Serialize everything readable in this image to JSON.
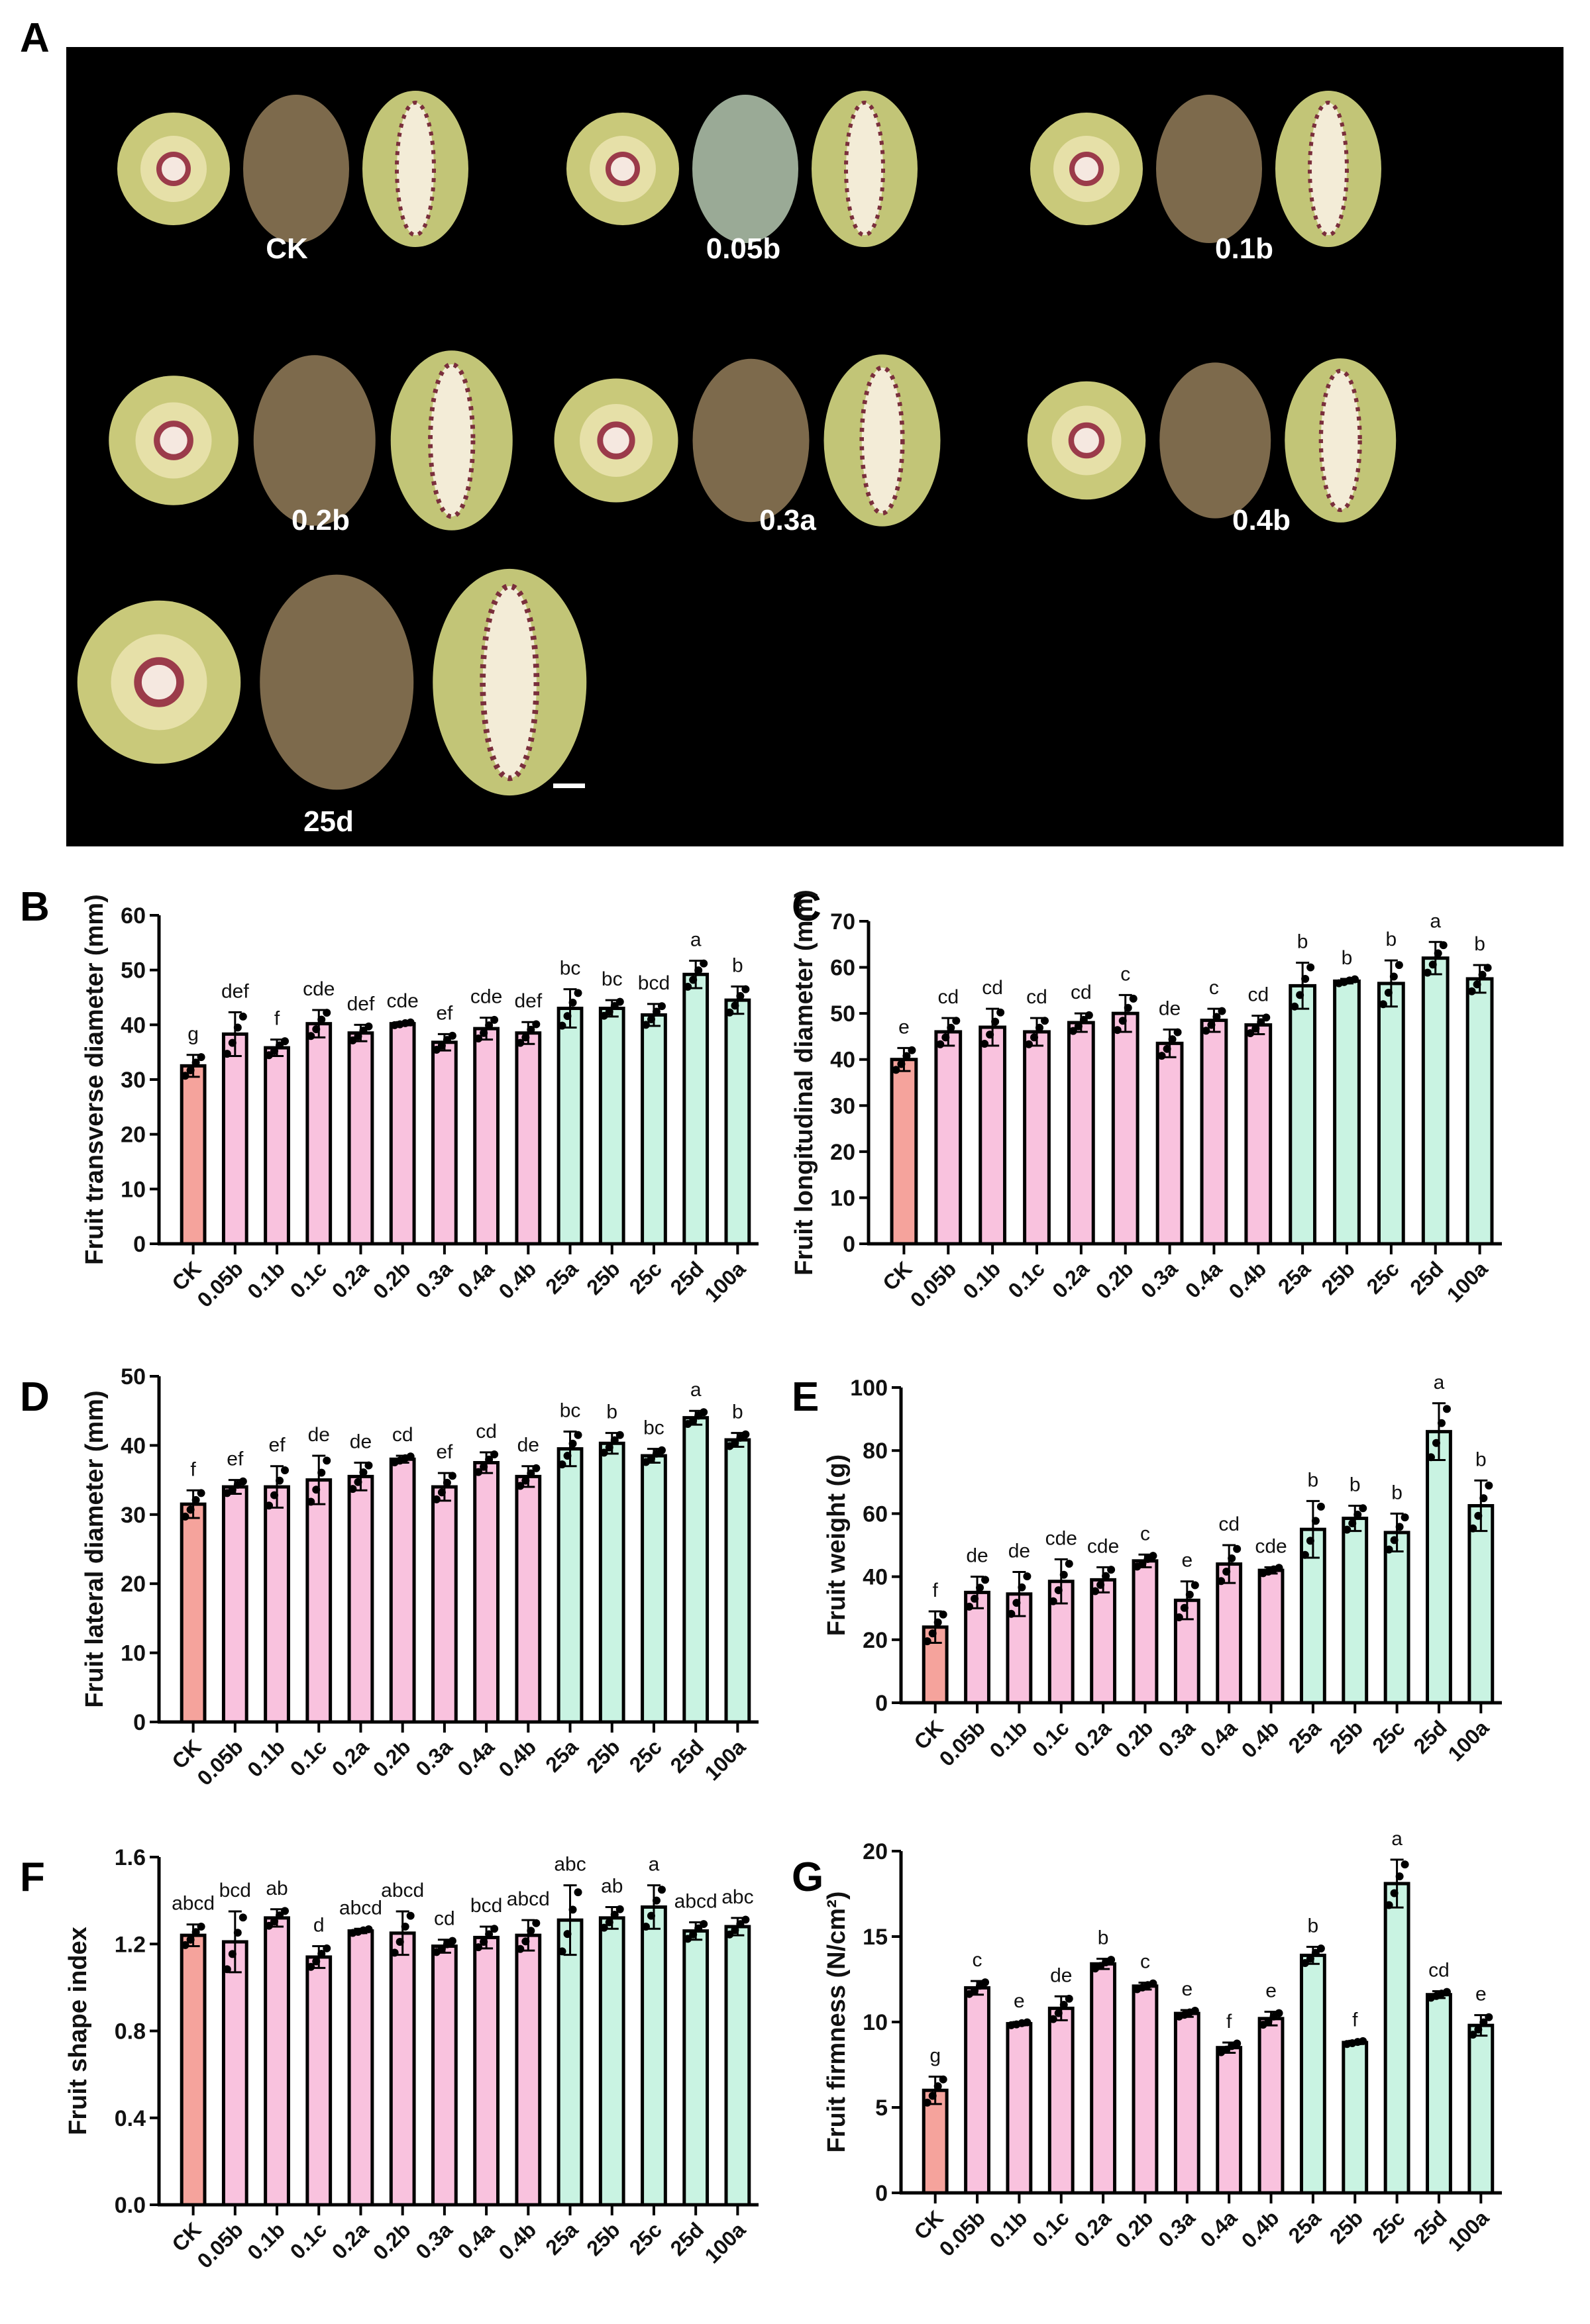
{
  "panel_labels": [
    "A",
    "B",
    "C",
    "D",
    "E",
    "F",
    "G"
  ],
  "photo_panel": {
    "background": "#000000",
    "groups": [
      {
        "label": "CK"
      },
      {
        "label": "0.05b"
      },
      {
        "label": "0.1b"
      },
      {
        "label": "0.2b"
      },
      {
        "label": "0.3a"
      },
      {
        "label": "0.4b"
      },
      {
        "label": "25d"
      }
    ]
  },
  "colors": {
    "ck": "#f5a39c",
    "pink": "#f9c2de",
    "green": "#c9f3e2"
  },
  "chart_data": [
    {
      "panel": "B",
      "type": "bar",
      "ylabel": "Fruit transverse diameter (mm)",
      "ylim": [
        0,
        60
      ],
      "yticks": [
        0,
        10,
        20,
        30,
        40,
        50,
        60
      ],
      "categories": [
        "CK",
        "0.05b",
        "0.1b",
        "0.1c",
        "0.2a",
        "0.2b",
        "0.3a",
        "0.4a",
        "0.4b",
        "25a",
        "25b",
        "25c",
        "25d",
        "100a"
      ],
      "values": [
        32.5,
        38.3,
        35.8,
        40.2,
        38.5,
        40.2,
        36.8,
        39.3,
        38.5,
        43,
        43,
        41.8,
        49.2,
        44.5
      ],
      "errors": [
        2,
        4,
        1.5,
        2.5,
        1.5,
        0.3,
        1.5,
        2,
        2,
        3.5,
        1.5,
        2,
        2.5,
        2.5
      ],
      "letters": [
        "g",
        "def",
        "f",
        "cde",
        "def",
        "cde",
        "ef",
        "cde",
        "def",
        "bc",
        "bc",
        "bcd",
        "a",
        "b"
      ]
    },
    {
      "panel": "C",
      "type": "bar",
      "ylabel": "Fruit longitudinal diameter (mm)",
      "ylim": [
        0,
        70
      ],
      "yticks": [
        0,
        10,
        20,
        30,
        40,
        50,
        60,
        70
      ],
      "categories": [
        "CK",
        "0.05b",
        "0.1b",
        "0.1c",
        "0.2a",
        "0.2b",
        "0.3a",
        "0.4a",
        "0.4b",
        "25a",
        "25b",
        "25c",
        "25d",
        "100a"
      ],
      "values": [
        40,
        46,
        47,
        46,
        48,
        50,
        43.5,
        48.5,
        47.5,
        56,
        57,
        56.5,
        62,
        57.5
      ],
      "errors": [
        2.5,
        3,
        4,
        3,
        2,
        4,
        3,
        2.5,
        2,
        5,
        0.5,
        5,
        3.5,
        3
      ],
      "letters": [
        "e",
        "cd",
        "cd",
        "cd",
        "cd",
        "c",
        "de",
        "c",
        "cd",
        "b",
        "b",
        "b",
        "a",
        "b"
      ]
    },
    {
      "panel": "D",
      "type": "bar",
      "ylabel": "Fruit lateral diameter (mm)",
      "ylim": [
        0,
        50
      ],
      "yticks": [
        0,
        10,
        20,
        30,
        40,
        50
      ],
      "categories": [
        "CK",
        "0.05b",
        "0.1b",
        "0.1c",
        "0.2a",
        "0.2b",
        "0.3a",
        "0.4a",
        "0.4b",
        "25a",
        "25b",
        "25c",
        "25d",
        "100a"
      ],
      "values": [
        31.5,
        34,
        34,
        35,
        35.5,
        38,
        34,
        37.5,
        35.5,
        39.5,
        40.3,
        38.5,
        44,
        40.8
      ],
      "errors": [
        2,
        1,
        3,
        3.5,
        2,
        0.5,
        2,
        1.5,
        1.5,
        2.5,
        1.5,
        1,
        1,
        1
      ],
      "letters": [
        "f",
        "ef",
        "ef",
        "de",
        "de",
        "cd",
        "ef",
        "cd",
        "de",
        "bc",
        "b",
        "bc",
        "a",
        "b"
      ]
    },
    {
      "panel": "E",
      "type": "bar",
      "ylabel": "Fruit weight (g)",
      "ylim": [
        0,
        100
      ],
      "yticks": [
        0,
        20,
        40,
        60,
        80,
        100
      ],
      "categories": [
        "CK",
        "0.05b",
        "0.1b",
        "0.1c",
        "0.2a",
        "0.2b",
        "0.3a",
        "0.4a",
        "0.4b",
        "25a",
        "25b",
        "25c",
        "25d",
        "100a"
      ],
      "values": [
        24,
        35,
        34.5,
        38.5,
        39,
        45,
        32.5,
        44,
        42,
        55,
        58.5,
        54,
        86,
        62.5
      ],
      "errors": [
        5,
        5,
        7,
        7,
        4,
        2,
        6,
        6,
        1,
        9,
        4,
        6,
        9,
        8
      ],
      "letters": [
        "f",
        "de",
        "de",
        "cde",
        "cde",
        "c",
        "e",
        "cd",
        "cde",
        "b",
        "b",
        "b",
        "a",
        "b"
      ]
    },
    {
      "panel": "F",
      "type": "bar",
      "ylabel": "Fruit shape index",
      "ylim": [
        0,
        1.6
      ],
      "yticks": [
        0.0,
        0.4,
        0.8,
        1.2,
        1.6
      ],
      "categories": [
        "CK",
        "0.05b",
        "0.1b",
        "0.1c",
        "0.2a",
        "0.2b",
        "0.3a",
        "0.4a",
        "0.4b",
        "25a",
        "25b",
        "25c",
        "25d",
        "100a"
      ],
      "values": [
        1.24,
        1.21,
        1.32,
        1.14,
        1.26,
        1.25,
        1.19,
        1.23,
        1.24,
        1.31,
        1.32,
        1.37,
        1.26,
        1.28
      ],
      "errors": [
        0.05,
        0.14,
        0.04,
        0.05,
        0.01,
        0.1,
        0.03,
        0.05,
        0.07,
        0.16,
        0.05,
        0.1,
        0.04,
        0.04
      ],
      "letters": [
        "abcd",
        "bcd",
        "ab",
        "d",
        "abcd",
        "abcd",
        "cd",
        "bcd",
        "abcd",
        "abc",
        "ab",
        "a",
        "abcd",
        "abc"
      ]
    },
    {
      "panel": "G",
      "type": "bar",
      "ylabel": "Fruit firmness (N/cm²)",
      "ylim": [
        0,
        20
      ],
      "yticks": [
        0,
        5,
        10,
        15,
        20
      ],
      "categories": [
        "CK",
        "0.05b",
        "0.1b",
        "0.1c",
        "0.2a",
        "0.2b",
        "0.3a",
        "0.4a",
        "0.4b",
        "25a",
        "25b",
        "25c",
        "25d",
        "100a"
      ],
      "values": [
        6,
        12,
        9.9,
        10.8,
        13.4,
        12.1,
        10.5,
        8.5,
        10.2,
        13.9,
        8.8,
        18.1,
        11.6,
        9.8
      ],
      "errors": [
        0.8,
        0.4,
        0.1,
        0.7,
        0.3,
        0.2,
        0.2,
        0.3,
        0.4,
        0.5,
        0.1,
        1.4,
        0.2,
        0.6
      ],
      "letters": [
        "g",
        "c",
        "e",
        "de",
        "b",
        "c",
        "e",
        "f",
        "e",
        "b",
        "f",
        "a",
        "cd",
        "e"
      ]
    }
  ]
}
